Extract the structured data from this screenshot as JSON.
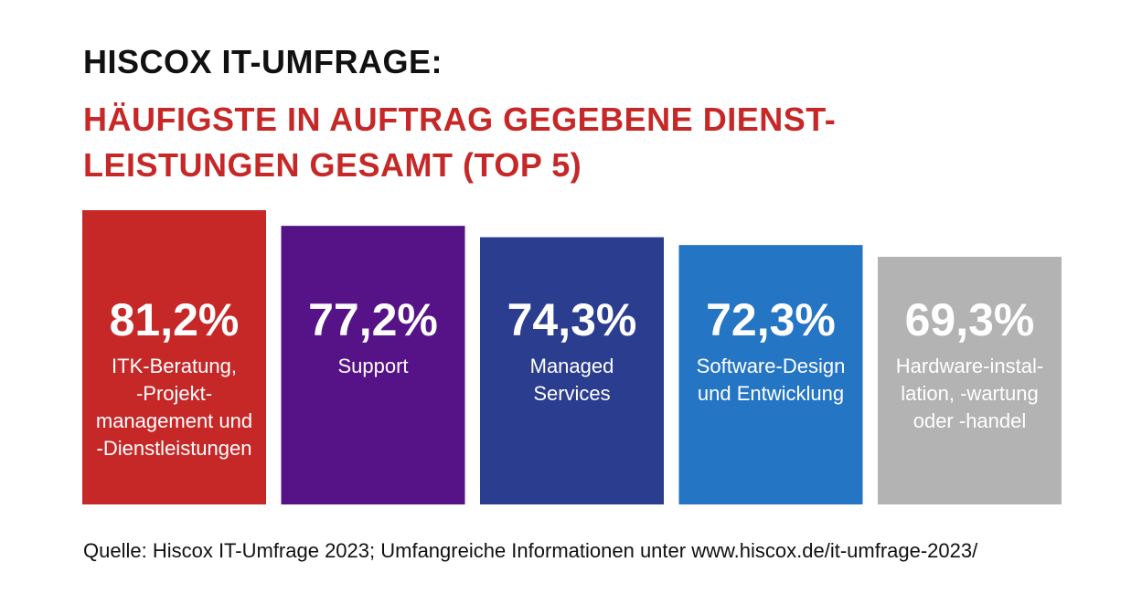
{
  "header": {
    "title": "HISCOX IT-UMFRAGE:",
    "subtitle_lines": [
      "HÄUFIGSTE IN AUFTRAG GEGEBENE DIENST-",
      "LEISTUNGEN GESAMT (TOP 5)"
    ]
  },
  "chart_data": {
    "type": "bar",
    "title": "HISCOX IT-UMFRAGE: HÄUFIGSTE IN AUFTRAG GEGEBENE DIENSTLEISTUNGEN GESAMT (TOP 5)",
    "xlabel": "",
    "ylabel": "",
    "unit": "%",
    "grid": false,
    "legend": "none",
    "categories": [
      "ITK-Beratung, -Projektmanagement und -Dienstleistungen",
      "Support",
      "Managed Services",
      "Software-Design und Entwicklung",
      "Hardware-installation, -wartung oder -handel"
    ],
    "values": [
      81.2,
      77.2,
      74.3,
      72.3,
      69.3
    ],
    "bars": [
      {
        "value": 81.2,
        "value_label": "81,2%",
        "label_lines": [
          "ITK-Beratung,",
          "-Projekt-",
          "management und",
          "-Dienstleistungen"
        ],
        "color": "#c62828"
      },
      {
        "value": 77.2,
        "value_label": "77,2%",
        "label_lines": [
          "Support"
        ],
        "color": "#561388"
      },
      {
        "value": 74.3,
        "value_label": "74,3%",
        "label_lines": [
          "Managed",
          "Services"
        ],
        "color": "#2b3d8f"
      },
      {
        "value": 72.3,
        "value_label": "72,3%",
        "label_lines": [
          "Software-Design",
          "und Entwicklung"
        ],
        "color": "#2475c4"
      },
      {
        "value": 69.3,
        "value_label": "69,3%",
        "label_lines": [
          "Hardware-instal-",
          "lation, -wartung",
          "oder -handel"
        ],
        "color": "#b3b3b3"
      }
    ]
  },
  "footer": {
    "source": "Quelle: Hiscox IT-Umfrage 2023; Umfangreiche Informationen unter www.hiscox.de/it-umfrage-2023/"
  }
}
